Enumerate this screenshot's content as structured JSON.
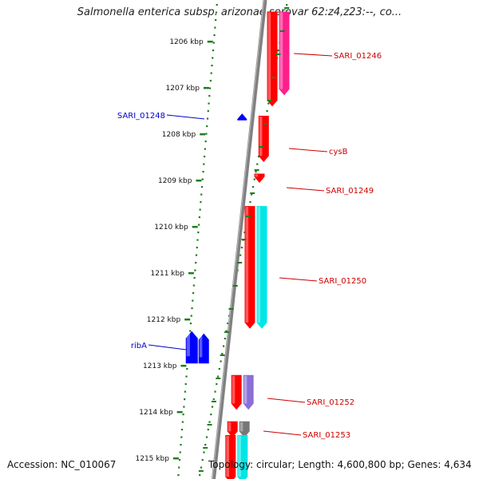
{
  "title": "Salmonella enterica subsp. arizonae serovar 62:z4,z23:--, co...",
  "footer": {
    "accession": "Accession: NC_010067",
    "stats": "Topology: circular; Length: 4,600,800 bp; Genes: 4,634"
  },
  "colors": {
    "forward": "#ff0000",
    "reverse": "#0000ff",
    "magenta": "#ff1f8c",
    "cyan": "#00e6e6",
    "purple": "#8a6fd6",
    "gray": "#777777",
    "backbone": "#808080",
    "dots": "#1e7d1e"
  },
  "scale": {
    "unit": "kbp",
    "ticks": [
      {
        "pos": 1206,
        "label": "1206 kbp"
      },
      {
        "pos": 1207,
        "label": "1207 kbp"
      },
      {
        "pos": 1208,
        "label": "1208 kbp"
      },
      {
        "pos": 1209,
        "label": "1209 kbp"
      },
      {
        "pos": 1210,
        "label": "1210 kbp"
      },
      {
        "pos": 1211,
        "label": "1211 kbp"
      },
      {
        "pos": 1212,
        "label": "1212 kbp"
      },
      {
        "pos": 1213,
        "label": "1213 kbp"
      },
      {
        "pos": 1214,
        "label": "1214 kbp"
      },
      {
        "pos": 1215,
        "label": "1215 kbp"
      }
    ]
  },
  "genes": [
    {
      "name": "SARI_01246",
      "strand": "forward",
      "start": 1205.35,
      "end": 1207.4
    },
    {
      "name": "cysB",
      "strand": "forward",
      "start": 1207.6,
      "end": 1208.6
    },
    {
      "name": "SARI_01249",
      "strand": "forward",
      "start": 1208.85,
      "end": 1209.05
    },
    {
      "name": "SARI_01250",
      "strand": "forward",
      "start": 1209.55,
      "end": 1212.2
    },
    {
      "name": "SARI_01252",
      "strand": "forward",
      "start": 1213.2,
      "end": 1213.95
    },
    {
      "name": "SARI_01253",
      "strand": "forward",
      "start": 1214.2,
      "end": 1214.55
    },
    {
      "name": "SARI_01248",
      "strand": "reverse",
      "start": 1207.55,
      "end": 1207.7
    },
    {
      "name": "ribA",
      "strand": "reverse",
      "start": 1212.25,
      "end": 1212.95
    }
  ]
}
